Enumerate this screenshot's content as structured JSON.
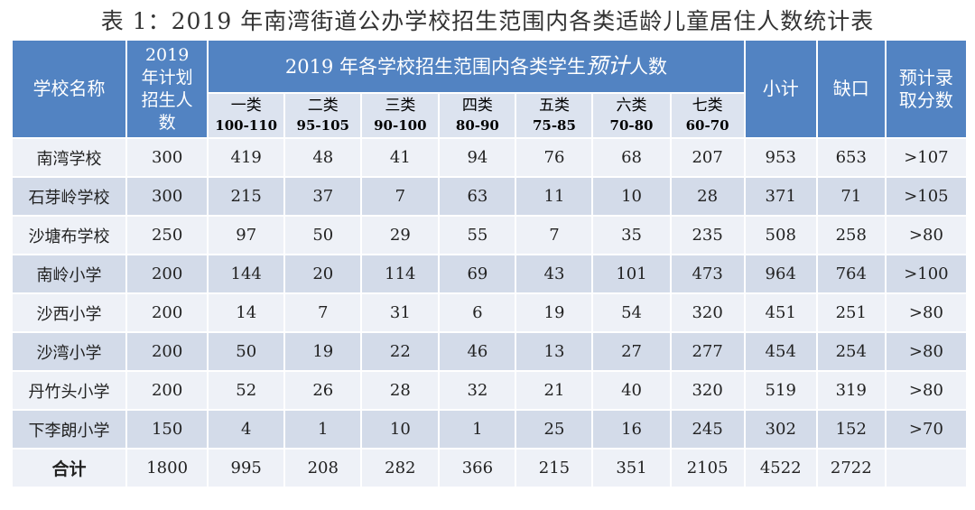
{
  "title": "表 1：2019 年南湾街道公办学校招生范围内各类适龄儿童居住人数统计表",
  "header": {
    "school_name": "学校名称",
    "plan": "2019 年计划招生人数",
    "group_prefix": "2019 年各学校招生范围内各类学生",
    "group_italic": "预计",
    "group_suffix": "人数",
    "subtotal": "小计",
    "gap": "缺口",
    "score": "预计录取分数",
    "categories": [
      {
        "name": "一类",
        "range": "100-110"
      },
      {
        "name": "二类",
        "range": "95-105"
      },
      {
        "name": "三类",
        "range": "90-100"
      },
      {
        "name": "四类",
        "range": "80-90"
      },
      {
        "name": "五类",
        "range": "75-85"
      },
      {
        "name": "六类",
        "range": "70-80"
      },
      {
        "name": "七类",
        "range": "60-70"
      }
    ]
  },
  "rows": [
    {
      "school": "南湾学校",
      "plan": "300",
      "cats": [
        "419",
        "48",
        "41",
        "94",
        "76",
        "68",
        "207"
      ],
      "subtotal": "953",
      "gap": "653",
      "score": ">107"
    },
    {
      "school": "石芽岭学校",
      "plan": "300",
      "cats": [
        "215",
        "37",
        "7",
        "63",
        "11",
        "10",
        "28"
      ],
      "subtotal": "371",
      "gap": "71",
      "score": ">105"
    },
    {
      "school": "沙塘布学校",
      "plan": "250",
      "cats": [
        "97",
        "50",
        "29",
        "55",
        "7",
        "35",
        "235"
      ],
      "subtotal": "508",
      "gap": "258",
      "score": ">80"
    },
    {
      "school": "南岭小学",
      "plan": "200",
      "cats": [
        "144",
        "20",
        "114",
        "69",
        "43",
        "101",
        "473"
      ],
      "subtotal": "964",
      "gap": "764",
      "score": ">100"
    },
    {
      "school": "沙西小学",
      "plan": "200",
      "cats": [
        "14",
        "7",
        "31",
        "6",
        "19",
        "54",
        "320"
      ],
      "subtotal": "451",
      "gap": "251",
      "score": ">80"
    },
    {
      "school": "沙湾小学",
      "plan": "200",
      "cats": [
        "50",
        "19",
        "22",
        "46",
        "13",
        "27",
        "277"
      ],
      "subtotal": "454",
      "gap": "254",
      "score": ">80"
    },
    {
      "school": "丹竹头小学",
      "plan": "200",
      "cats": [
        "52",
        "26",
        "28",
        "32",
        "21",
        "40",
        "320"
      ],
      "subtotal": "519",
      "gap": "319",
      "score": ">80"
    },
    {
      "school": "下李朗小学",
      "plan": "150",
      "cats": [
        "4",
        "1",
        "10",
        "1",
        "25",
        "16",
        "245"
      ],
      "subtotal": "302",
      "gap": "152",
      "score": ">70"
    }
  ],
  "total": {
    "school": "合计",
    "plan": "1800",
    "cats": [
      "995",
      "208",
      "282",
      "366",
      "215",
      "351",
      "2105"
    ],
    "subtotal": "4522",
    "gap": "2722",
    "score": ""
  },
  "colors": {
    "header": "#5283c2",
    "subheader": "#dce3ef",
    "row_light": "#eef1f7",
    "row_dark": "#d3dbe9"
  }
}
